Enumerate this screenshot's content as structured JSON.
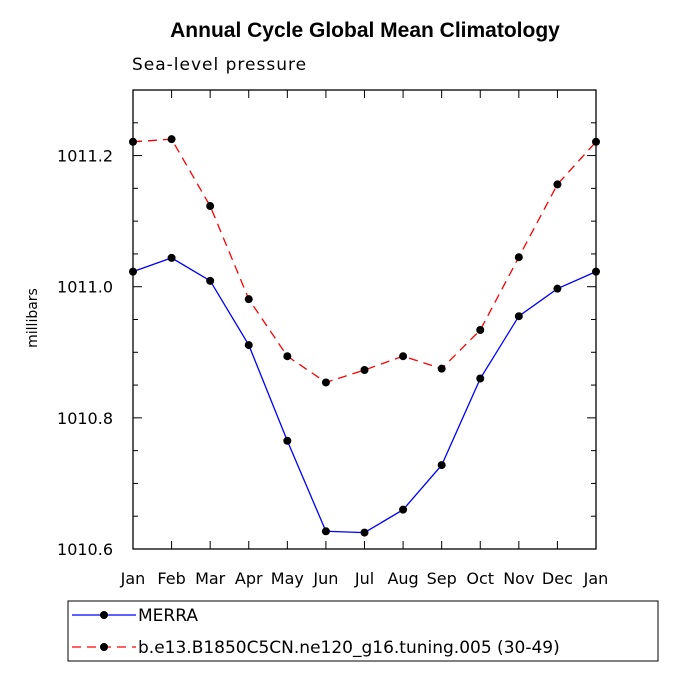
{
  "chart_data": {
    "type": "line",
    "title": "Annual Cycle Global Mean Climatology",
    "subtitle": "Sea-level pressure",
    "xlabel": "",
    "ylabel": "millibars",
    "categories": [
      "Jan",
      "Feb",
      "Mar",
      "Apr",
      "May",
      "Jun",
      "Jul",
      "Aug",
      "Sep",
      "Oct",
      "Nov",
      "Dec",
      "Jan"
    ],
    "ylim": [
      1010.6,
      1011.3
    ],
    "yticks": [
      1010.6,
      1010.8,
      1011.0,
      1011.2
    ],
    "ytick_labels": [
      "1010.6",
      "1010.8",
      "1011.0",
      "1011.2"
    ],
    "series": [
      {
        "name": "MERRA",
        "color": "#0000ff",
        "dash": "solid",
        "values": [
          1011.023,
          1011.044,
          1011.009,
          1010.911,
          1010.765,
          1010.627,
          1010.625,
          1010.66,
          1010.728,
          1010.86,
          1010.955,
          1010.997,
          1011.023
        ]
      },
      {
        "name": "b.e13.B1850C5CN.ne120_g16.tuning.005 (30-49)",
        "color": "#ff0000",
        "dash": "dashed",
        "values": [
          1011.221,
          1011.225,
          1011.123,
          1010.981,
          1010.894,
          1010.854,
          1010.873,
          1010.894,
          1010.875,
          1010.934,
          1011.045,
          1011.156,
          1011.221
        ]
      }
    ],
    "legend": "bottom"
  }
}
